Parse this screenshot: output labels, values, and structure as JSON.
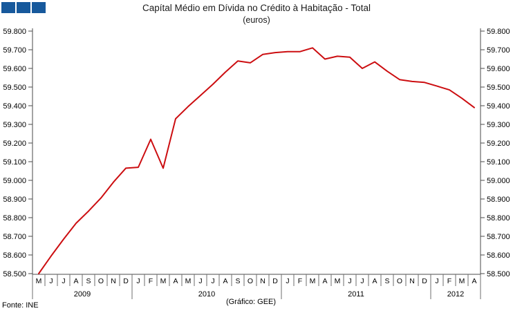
{
  "header": {
    "title": "Capítal Médio em Dívida no Crédito à Habitação - Total",
    "subtitle": "(euros)",
    "logo_squares": [
      "#17599c",
      "#17599c",
      "#17599c"
    ]
  },
  "footer": {
    "source": "Fonte: INE",
    "credit": "(Gráfico: GEE)"
  },
  "colors": {
    "line": "#cc0d10",
    "axis": "#4a4a4a",
    "grid_tick": "#6e6e6e",
    "text": "#000000",
    "logo_blue": "#17599c"
  },
  "chart_data": {
    "type": "line",
    "title": "Capítal Médio em Dívida no Crédito à Habitação - Total",
    "subtitle": "(euros)",
    "ylabel": "",
    "xlabel": "",
    "ylim": [
      58500,
      59800
    ],
    "ytick_step": 100,
    "ytick_label_format": "thousands-dot (e.g. 58.500 … 59.800)",
    "grid": false,
    "legend": "none",
    "line_color": "#cc0d10",
    "x_months": [
      "M",
      "J",
      "J",
      "A",
      "S",
      "O",
      "N",
      "D",
      "J",
      "F",
      "M",
      "A",
      "M",
      "J",
      "J",
      "A",
      "S",
      "O",
      "N",
      "D",
      "J",
      "F",
      "M",
      "A",
      "M",
      "J",
      "J",
      "A",
      "S",
      "O",
      "N",
      "D",
      "J",
      "F",
      "M",
      "A"
    ],
    "years": [
      {
        "label": "2009",
        "months": 8
      },
      {
        "label": "2010",
        "months": 12
      },
      {
        "label": "2011",
        "months": 12
      },
      {
        "label": "2012",
        "months": 4
      }
    ],
    "values": [
      58500,
      58595,
      58685,
      58770,
      58835,
      58905,
      58990,
      59065,
      59070,
      59220,
      59065,
      59330,
      59395,
      59455,
      59515,
      59580,
      59640,
      59630,
      59675,
      59685,
      59690,
      59690,
      59710,
      59650,
      59665,
      59660,
      59600,
      59635,
      59585,
      59540,
      59530,
      59525,
      59505,
      59485,
      59440,
      59390
    ]
  }
}
